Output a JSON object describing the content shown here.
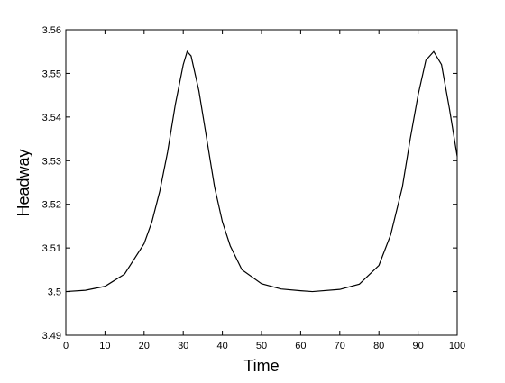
{
  "chart_data": {
    "type": "line",
    "xlabel": "Time",
    "ylabel": "Headway",
    "x": [
      0,
      5,
      10,
      15,
      20,
      22,
      24,
      26,
      28,
      30,
      31,
      32,
      34,
      36,
      38,
      40,
      42,
      45,
      50,
      55,
      60,
      63,
      70,
      75,
      80,
      83,
      86,
      88,
      90,
      92,
      94,
      96,
      98,
      100
    ],
    "series": [
      {
        "color": "#000000",
        "values": [
          3.5,
          3.5003,
          3.5012,
          3.504,
          3.511,
          3.516,
          3.523,
          3.532,
          3.543,
          3.552,
          3.555,
          3.554,
          3.546,
          3.535,
          3.524,
          3.516,
          3.5105,
          3.505,
          3.5018,
          3.5006,
          3.5002,
          3.5,
          3.5005,
          3.5017,
          3.506,
          3.513,
          3.524,
          3.535,
          3.545,
          3.553,
          3.555,
          3.552,
          3.542,
          3.531
        ]
      }
    ],
    "xlim": [
      0,
      100
    ],
    "xticks": [
      0,
      10,
      20,
      30,
      40,
      50,
      60,
      70,
      80,
      90,
      100
    ],
    "ylim": [
      3.49,
      3.56
    ],
    "yticks": [
      3.49,
      3.5,
      3.51,
      3.52,
      3.53,
      3.54,
      3.55,
      3.56
    ],
    "grid": false
  }
}
